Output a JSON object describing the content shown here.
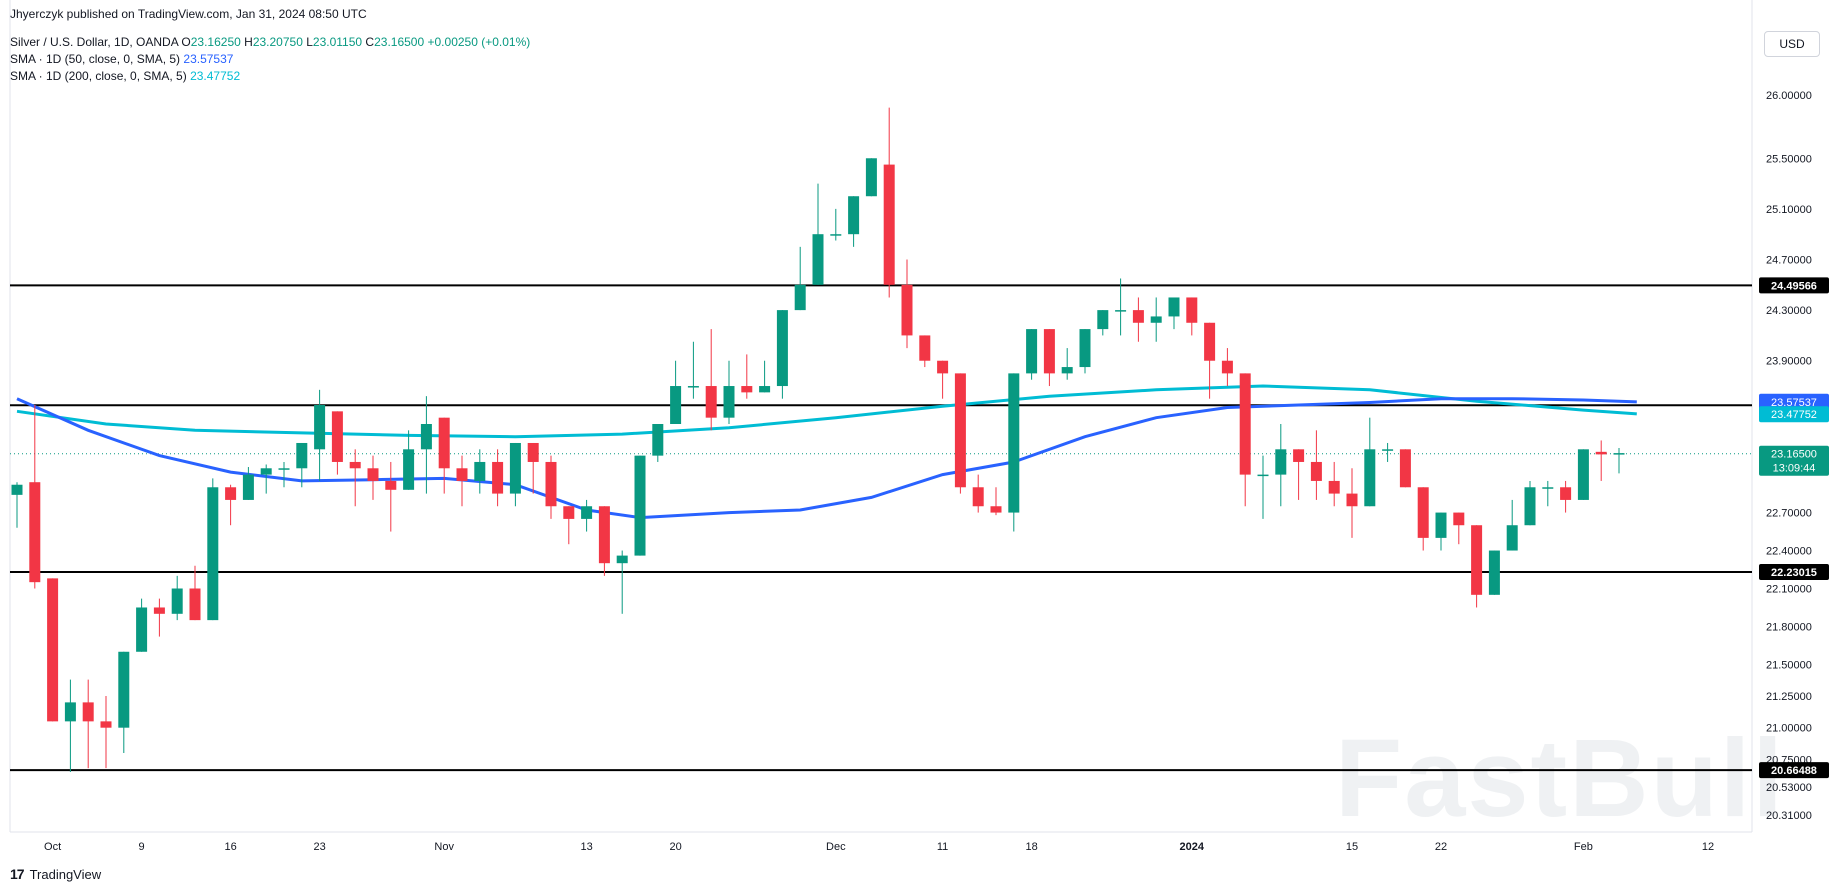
{
  "header": {
    "published": "Jhyerczyk published on TradingView.com, Jan 31, 2024 08:50 UTC",
    "symbol": "Silver / U.S. Dollar, 1D, OANDA",
    "open_label": "O",
    "open": "23.16250",
    "high_label": "H",
    "high": "23.20750",
    "low_label": "L",
    "low": "23.01150",
    "close_label": "C",
    "close": "23.16500",
    "change": "+0.00250 (+0.01%)",
    "sma50_label": "SMA · 1D (50, close, 0, SMA, 5)",
    "sma50_value": "23.57537",
    "sma200_label": "SMA · 1D (200, close, 0, SMA, 5)",
    "sma200_value": "23.47752"
  },
  "currency": "USD",
  "footer": {
    "brand": "TradingView"
  },
  "watermark": "FastBull",
  "colors": {
    "up": "#089981",
    "down": "#f23645",
    "sma50": "#2962ff",
    "sma200": "#00bcd4",
    "level": "#000000"
  },
  "chart_data": {
    "type": "candlestick",
    "ylim": [
      20.2,
      26.2
    ],
    "y_ticks": [
      "26.00000",
      "25.50000",
      "25.10000",
      "24.70000",
      "24.30000",
      "23.90000",
      "22.70000",
      "22.40000",
      "22.10000",
      "21.80000",
      "21.50000",
      "21.25000",
      "21.00000",
      "20.75000",
      "20.53000",
      "20.31000"
    ],
    "x_ticks": [
      {
        "label": "Oct",
        "index": 2
      },
      {
        "label": "9",
        "index": 7
      },
      {
        "label": "16",
        "index": 12
      },
      {
        "label": "23",
        "index": 17
      },
      {
        "label": "Nov",
        "index": 24
      },
      {
        "label": "13",
        "index": 32
      },
      {
        "label": "20",
        "index": 37
      },
      {
        "label": "Dec",
        "index": 46
      },
      {
        "label": "11",
        "index": 52
      },
      {
        "label": "18",
        "index": 57
      },
      {
        "label": "2024",
        "index": 66
      },
      {
        "label": "15",
        "index": 75
      },
      {
        "label": "22",
        "index": 80
      },
      {
        "label": "Feb",
        "index": 88
      },
      {
        "label": "12",
        "index": 95
      }
    ],
    "horizontal_levels": [
      {
        "value": 24.49566,
        "label": "24.49566"
      },
      {
        "value": 23.54826,
        "label": "23.54826"
      },
      {
        "value": 22.23015,
        "label": "22.23015"
      },
      {
        "value": 20.66488,
        "label": "20.66488"
      }
    ],
    "price_labels": [
      {
        "value": 23.57537,
        "label": "23.57537",
        "color": "#2962ff"
      },
      {
        "value": 23.47752,
        "label": "23.47752",
        "color": "#00bcd4"
      },
      {
        "value": 23.165,
        "label": "23.16500",
        "sub": "13:09:44",
        "color": "#089981"
      }
    ],
    "candles": [
      [
        22.84,
        22.92,
        22.58,
        22.94
      ],
      [
        22.94,
        22.15,
        22.1,
        23.55
      ],
      [
        22.18,
        21.05,
        21.05,
        22.18
      ],
      [
        21.05,
        21.2,
        20.65,
        21.38
      ],
      [
        21.2,
        21.05,
        20.68,
        21.38
      ],
      [
        21.05,
        21.0,
        20.68,
        21.25
      ],
      [
        21.0,
        21.6,
        20.8,
        21.6
      ],
      [
        21.6,
        21.95,
        21.6,
        22.02
      ],
      [
        21.95,
        21.9,
        21.72,
        22.02
      ],
      [
        21.9,
        22.1,
        21.85,
        22.2
      ],
      [
        22.1,
        21.85,
        21.85,
        22.28
      ],
      [
        21.85,
        22.9,
        21.85,
        22.97
      ],
      [
        22.9,
        22.8,
        22.6,
        22.92
      ],
      [
        22.8,
        23.0,
        22.8,
        23.06
      ],
      [
        23.0,
        23.05,
        22.85,
        23.08
      ],
      [
        23.05,
        23.05,
        22.9,
        23.1
      ],
      [
        23.05,
        23.25,
        22.9,
        23.25
      ],
      [
        23.2,
        23.55,
        22.95,
        23.67
      ],
      [
        23.5,
        23.1,
        23.0,
        23.5
      ],
      [
        23.1,
        23.05,
        22.75,
        23.2
      ],
      [
        23.05,
        22.95,
        22.8,
        23.15
      ],
      [
        22.95,
        22.88,
        22.55,
        23.1
      ],
      [
        22.88,
        23.2,
        22.88,
        23.35
      ],
      [
        23.2,
        23.4,
        22.85,
        23.62
      ],
      [
        23.45,
        23.05,
        22.85,
        23.45
      ],
      [
        23.05,
        22.95,
        22.75,
        23.15
      ],
      [
        22.95,
        23.1,
        22.85,
        23.2
      ],
      [
        23.1,
        22.85,
        22.75,
        23.2
      ],
      [
        22.85,
        23.25,
        22.75,
        23.25
      ],
      [
        23.25,
        23.1,
        22.85,
        23.25
      ],
      [
        23.1,
        22.75,
        22.65,
        23.15
      ],
      [
        22.75,
        22.65,
        22.45,
        22.75
      ],
      [
        22.65,
        22.75,
        22.55,
        22.8
      ],
      [
        22.75,
        22.3,
        22.2,
        22.75
      ],
      [
        22.3,
        22.36,
        21.9,
        22.4
      ],
      [
        22.36,
        23.15,
        22.36,
        23.15
      ],
      [
        23.15,
        23.4,
        23.1,
        23.4
      ],
      [
        23.4,
        23.7,
        23.4,
        23.9
      ],
      [
        23.7,
        23.7,
        23.6,
        24.05
      ],
      [
        23.7,
        23.45,
        23.35,
        24.15
      ],
      [
        23.45,
        23.7,
        23.4,
        23.9
      ],
      [
        23.7,
        23.65,
        23.6,
        23.95
      ],
      [
        23.65,
        23.7,
        23.65,
        23.9
      ],
      [
        23.7,
        24.3,
        23.6,
        24.3
      ],
      [
        24.3,
        24.5,
        24.3,
        24.8
      ],
      [
        24.5,
        24.9,
        24.5,
        25.3
      ],
      [
        24.9,
        24.9,
        24.85,
        25.1
      ],
      [
        24.9,
        25.2,
        24.8,
        25.2
      ],
      [
        25.2,
        25.5,
        25.2,
        25.5
      ],
      [
        25.45,
        24.5,
        24.4,
        25.9
      ],
      [
        24.5,
        24.1,
        24.0,
        24.7
      ],
      [
        24.1,
        23.9,
        23.85,
        24.1
      ],
      [
        23.9,
        23.8,
        23.6,
        23.9
      ],
      [
        23.8,
        22.9,
        22.85,
        23.8
      ],
      [
        22.9,
        22.75,
        22.7,
        23.0
      ],
      [
        22.75,
        22.7,
        22.68,
        22.9
      ],
      [
        22.7,
        23.8,
        22.55,
        23.8
      ],
      [
        23.8,
        24.15,
        23.75,
        24.15
      ],
      [
        24.15,
        23.8,
        23.7,
        24.15
      ],
      [
        23.8,
        23.85,
        23.75,
        24.0
      ],
      [
        23.85,
        24.15,
        23.8,
        24.15
      ],
      [
        24.15,
        24.3,
        24.1,
        24.3
      ],
      [
        24.3,
        24.3,
        24.1,
        24.55
      ],
      [
        24.3,
        24.2,
        24.05,
        24.4
      ],
      [
        24.2,
        24.25,
        24.05,
        24.4
      ],
      [
        24.25,
        24.4,
        24.15,
        24.4
      ],
      [
        24.4,
        24.2,
        24.1,
        24.4
      ],
      [
        24.2,
        23.9,
        23.6,
        24.2
      ],
      [
        23.9,
        23.8,
        23.7,
        24.0
      ],
      [
        23.8,
        23.0,
        22.75,
        23.8
      ],
      [
        23.0,
        23.0,
        22.65,
        23.15
      ],
      [
        23.0,
        23.2,
        22.75,
        23.4
      ],
      [
        23.2,
        23.1,
        22.8,
        23.2
      ],
      [
        23.1,
        22.95,
        22.8,
        23.35
      ],
      [
        22.95,
        22.85,
        22.75,
        23.1
      ],
      [
        22.85,
        22.75,
        22.5,
        23.05
      ],
      [
        22.75,
        23.2,
        22.75,
        23.45
      ],
      [
        23.2,
        23.2,
        23.1,
        23.25
      ],
      [
        23.2,
        22.9,
        22.9,
        23.2
      ],
      [
        22.9,
        22.5,
        22.4,
        22.9
      ],
      [
        22.5,
        22.7,
        22.4,
        22.7
      ],
      [
        22.7,
        22.6,
        22.45,
        22.7
      ],
      [
        22.6,
        22.05,
        21.95,
        22.6
      ],
      [
        22.05,
        22.4,
        22.05,
        22.4
      ],
      [
        22.4,
        22.6,
        22.4,
        22.8
      ],
      [
        22.6,
        22.9,
        22.6,
        22.95
      ],
      [
        22.9,
        22.9,
        22.75,
        22.95
      ],
      [
        22.9,
        22.8,
        22.7,
        22.95
      ],
      [
        22.8,
        23.2,
        22.8,
        23.2
      ],
      [
        23.18,
        23.16,
        22.95,
        23.27
      ],
      [
        23.16,
        23.17,
        23.01,
        23.21
      ]
    ],
    "sma50": [
      [
        0,
        23.6
      ],
      [
        4,
        23.35
      ],
      [
        8,
        23.15
      ],
      [
        12,
        23.02
      ],
      [
        16,
        22.95
      ],
      [
        20,
        22.96
      ],
      [
        24,
        22.97
      ],
      [
        28,
        22.92
      ],
      [
        32,
        22.72
      ],
      [
        35,
        22.66
      ],
      [
        40,
        22.7
      ],
      [
        44,
        22.72
      ],
      [
        48,
        22.82
      ],
      [
        52,
        23.0
      ],
      [
        56,
        23.1
      ],
      [
        60,
        23.3
      ],
      [
        64,
        23.45
      ],
      [
        68,
        23.53
      ],
      [
        72,
        23.55
      ],
      [
        76,
        23.57
      ],
      [
        80,
        23.6
      ],
      [
        84,
        23.6
      ],
      [
        88,
        23.59
      ],
      [
        91,
        23.575
      ]
    ],
    "sma200": [
      [
        0,
        23.5
      ],
      [
        5,
        23.4
      ],
      [
        10,
        23.35
      ],
      [
        16,
        23.33
      ],
      [
        22,
        23.31
      ],
      [
        28,
        23.3
      ],
      [
        34,
        23.32
      ],
      [
        40,
        23.37
      ],
      [
        46,
        23.45
      ],
      [
        52,
        23.54
      ],
      [
        58,
        23.62
      ],
      [
        64,
        23.67
      ],
      [
        70,
        23.7
      ],
      [
        76,
        23.67
      ],
      [
        82,
        23.58
      ],
      [
        88,
        23.51
      ],
      [
        91,
        23.48
      ]
    ]
  }
}
